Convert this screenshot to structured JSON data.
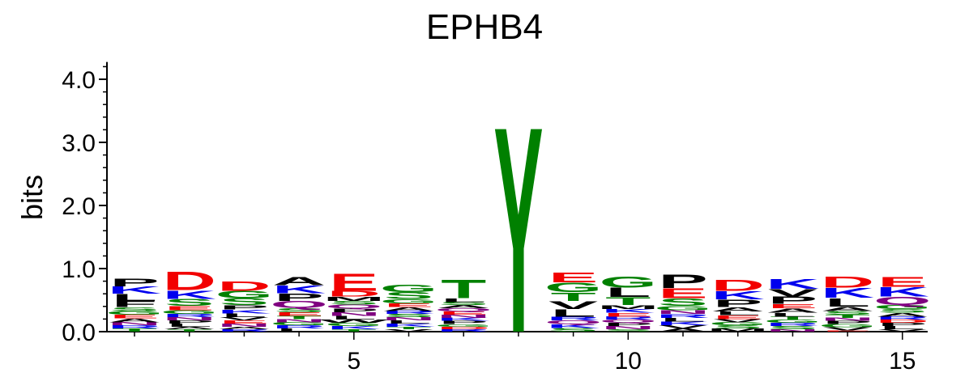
{
  "chart_data": {
    "type": "sequence-logo",
    "title": "EPHB4",
    "ylabel": "bits",
    "ylim": [
      0,
      4.3
    ],
    "y_ticks": [
      "0.0",
      "1.0",
      "2.0",
      "3.0",
      "4.0"
    ],
    "x_ticks": [
      5,
      10,
      15
    ],
    "positions": [
      1,
      2,
      3,
      4,
      5,
      6,
      7,
      8,
      9,
      10,
      11,
      12,
      13,
      14,
      15
    ],
    "colors": {
      "acidic": "#f20000",
      "basic": "#0000ee",
      "hydrophobic": "#000000",
      "polar": "#008000",
      "amide": "#800080"
    },
    "residue_colors": {
      "D": "#f20000",
      "E": "#f20000",
      "K": "#0000ee",
      "R": "#0000ee",
      "H": "#0000ee",
      "A": "#000000",
      "F": "#000000",
      "I": "#000000",
      "L": "#000000",
      "M": "#000000",
      "P": "#000000",
      "V": "#000000",
      "W": "#000000",
      "G": "#008000",
      "S": "#008000",
      "T": "#008000",
      "Y": "#008000",
      "C": "#008000",
      "N": "#800080",
      "Q": "#800080"
    },
    "stacks": [
      {
        "position": 1,
        "letters": [
          [
            "F",
            0.1
          ],
          [
            "K",
            0.12
          ],
          [
            "L",
            0.11
          ],
          [
            "P",
            0.13
          ],
          [
            "A",
            0.06
          ],
          [
            "E",
            0.06
          ],
          [
            "G",
            0.06
          ],
          [
            "S",
            0.06
          ],
          [
            "T",
            0.05
          ],
          [
            "R",
            0.05
          ],
          [
            "N",
            0.05
          ]
        ]
      },
      {
        "position": 2,
        "letters": [
          [
            "D",
            0.3
          ],
          [
            "K",
            0.14
          ],
          [
            "S",
            0.11
          ],
          [
            "E",
            0.07
          ],
          [
            "G",
            0.06
          ],
          [
            "L",
            0.05
          ],
          [
            "P",
            0.05
          ],
          [
            "N",
            0.05
          ],
          [
            "R",
            0.05
          ],
          [
            "T",
            0.04
          ],
          [
            "A",
            0.04
          ]
        ]
      },
      {
        "position": 3,
        "letters": [
          [
            "D",
            0.15
          ],
          [
            "G",
            0.12
          ],
          [
            "S",
            0.11
          ],
          [
            "P",
            0.07
          ],
          [
            "L",
            0.06
          ],
          [
            "K",
            0.06
          ],
          [
            "N",
            0.05
          ],
          [
            "E",
            0.05
          ],
          [
            "V",
            0.05
          ],
          [
            "R",
            0.04
          ],
          [
            "A",
            0.04
          ]
        ]
      },
      {
        "position": 4,
        "letters": [
          [
            "A",
            0.14
          ],
          [
            "K",
            0.13
          ],
          [
            "P",
            0.12
          ],
          [
            "Q",
            0.11
          ],
          [
            "S",
            0.07
          ],
          [
            "E",
            0.06
          ],
          [
            "L",
            0.05
          ],
          [
            "R",
            0.05
          ],
          [
            "G",
            0.05
          ],
          [
            "N",
            0.05
          ],
          [
            "T",
            0.05
          ]
        ]
      },
      {
        "position": 5,
        "letters": [
          [
            "E",
            0.28
          ],
          [
            "D",
            0.09
          ],
          [
            "L",
            0.06
          ],
          [
            "M",
            0.07
          ],
          [
            "N",
            0.06
          ],
          [
            "P",
            0.06
          ],
          [
            "Q",
            0.06
          ],
          [
            "S",
            0.06
          ],
          [
            "K",
            0.05
          ],
          [
            "G",
            0.05
          ],
          [
            "W",
            0.05
          ],
          [
            "T",
            0.04
          ]
        ]
      },
      {
        "position": 6,
        "letters": [
          [
            "G",
            0.12
          ],
          [
            "S",
            0.11
          ],
          [
            "G",
            0.07
          ],
          [
            "A",
            0.06
          ],
          [
            "E",
            0.06
          ],
          [
            "K",
            0.05
          ],
          [
            "L",
            0.05
          ],
          [
            "N",
            0.05
          ],
          [
            "S",
            0.05
          ],
          [
            "R",
            0.05
          ],
          [
            "V",
            0.04
          ],
          [
            "T",
            0.04
          ]
        ]
      },
      {
        "position": 7,
        "letters": [
          [
            "T",
            0.3
          ],
          [
            "P",
            0.05
          ],
          [
            "L",
            0.06
          ],
          [
            "K",
            0.05
          ],
          [
            "N",
            0.05
          ],
          [
            "E",
            0.05
          ],
          [
            "Q",
            0.05
          ],
          [
            "A",
            0.05
          ],
          [
            "S",
            0.05
          ],
          [
            "R",
            0.04
          ],
          [
            "D",
            0.04
          ],
          [
            "G",
            0.04
          ]
        ]
      },
      {
        "position": 8,
        "letters": [
          [
            "Y",
            3.36
          ]
        ]
      },
      {
        "position": 9,
        "letters": [
          [
            "E",
            0.16
          ],
          [
            "G",
            0.15
          ],
          [
            "L",
            0.12
          ],
          [
            "T",
            0.14
          ],
          [
            "V",
            0.13
          ],
          [
            "S",
            0.06
          ],
          [
            "K",
            0.06
          ],
          [
            "Q",
            0.06
          ],
          [
            "R",
            0.06
          ]
        ]
      },
      {
        "position": 10,
        "letters": [
          [
            "G",
            0.18
          ],
          [
            "L",
            0.15
          ],
          [
            "T",
            0.13
          ],
          [
            "E",
            0.06
          ],
          [
            "K",
            0.06
          ],
          [
            "M",
            0.06
          ],
          [
            "N",
            0.05
          ],
          [
            "P",
            0.05
          ],
          [
            "Q",
            0.05
          ],
          [
            "R",
            0.05
          ],
          [
            "S",
            0.04
          ]
        ]
      },
      {
        "position": 11,
        "letters": [
          [
            "P",
            0.22
          ],
          [
            "E",
            0.16
          ],
          [
            "S",
            0.12
          ],
          [
            "G",
            0.07
          ],
          [
            "K",
            0.06
          ],
          [
            "L",
            0.06
          ],
          [
            "R",
            0.06
          ],
          [
            "N",
            0.06
          ],
          [
            "A",
            0.05
          ],
          [
            "V",
            0.05
          ]
        ]
      },
      {
        "position": 12,
        "letters": [
          [
            "D",
            0.18
          ],
          [
            "K",
            0.14
          ],
          [
            "P",
            0.12
          ],
          [
            "A",
            0.07
          ],
          [
            "E",
            0.06
          ],
          [
            "L",
            0.06
          ],
          [
            "M",
            0.05
          ],
          [
            "S",
            0.05
          ],
          [
            "G",
            0.05
          ],
          [
            "V",
            0.05
          ]
        ]
      },
      {
        "position": 13,
        "letters": [
          [
            "K",
            0.16
          ],
          [
            "P",
            0.12
          ],
          [
            "V",
            0.12
          ],
          [
            "A",
            0.07
          ],
          [
            "E",
            0.07
          ],
          [
            "L",
            0.06
          ],
          [
            "S",
            0.05
          ],
          [
            "R",
            0.05
          ],
          [
            "G",
            0.05
          ],
          [
            "T",
            0.05
          ],
          [
            "N",
            0.04
          ]
        ]
      },
      {
        "position": 14,
        "letters": [
          [
            "D",
            0.18
          ],
          [
            "E",
            0.02
          ],
          [
            "K",
            0.16
          ],
          [
            "L",
            0.14
          ],
          [
            "A",
            0.07
          ],
          [
            "S",
            0.06
          ],
          [
            "V",
            0.05
          ],
          [
            "G",
            0.05
          ],
          [
            "P",
            0.05
          ],
          [
            "N",
            0.05
          ],
          [
            "T",
            0.05
          ]
        ]
      },
      {
        "position": 15,
        "letters": [
          [
            "E",
            0.16
          ],
          [
            "K",
            0.15
          ],
          [
            "Q",
            0.13
          ],
          [
            "G",
            0.07
          ],
          [
            "A",
            0.06
          ],
          [
            "S",
            0.06
          ],
          [
            "L",
            0.05
          ],
          [
            "P",
            0.05
          ],
          [
            "D",
            0.05
          ],
          [
            "R",
            0.05
          ],
          [
            "V",
            0.04
          ]
        ]
      }
    ]
  }
}
